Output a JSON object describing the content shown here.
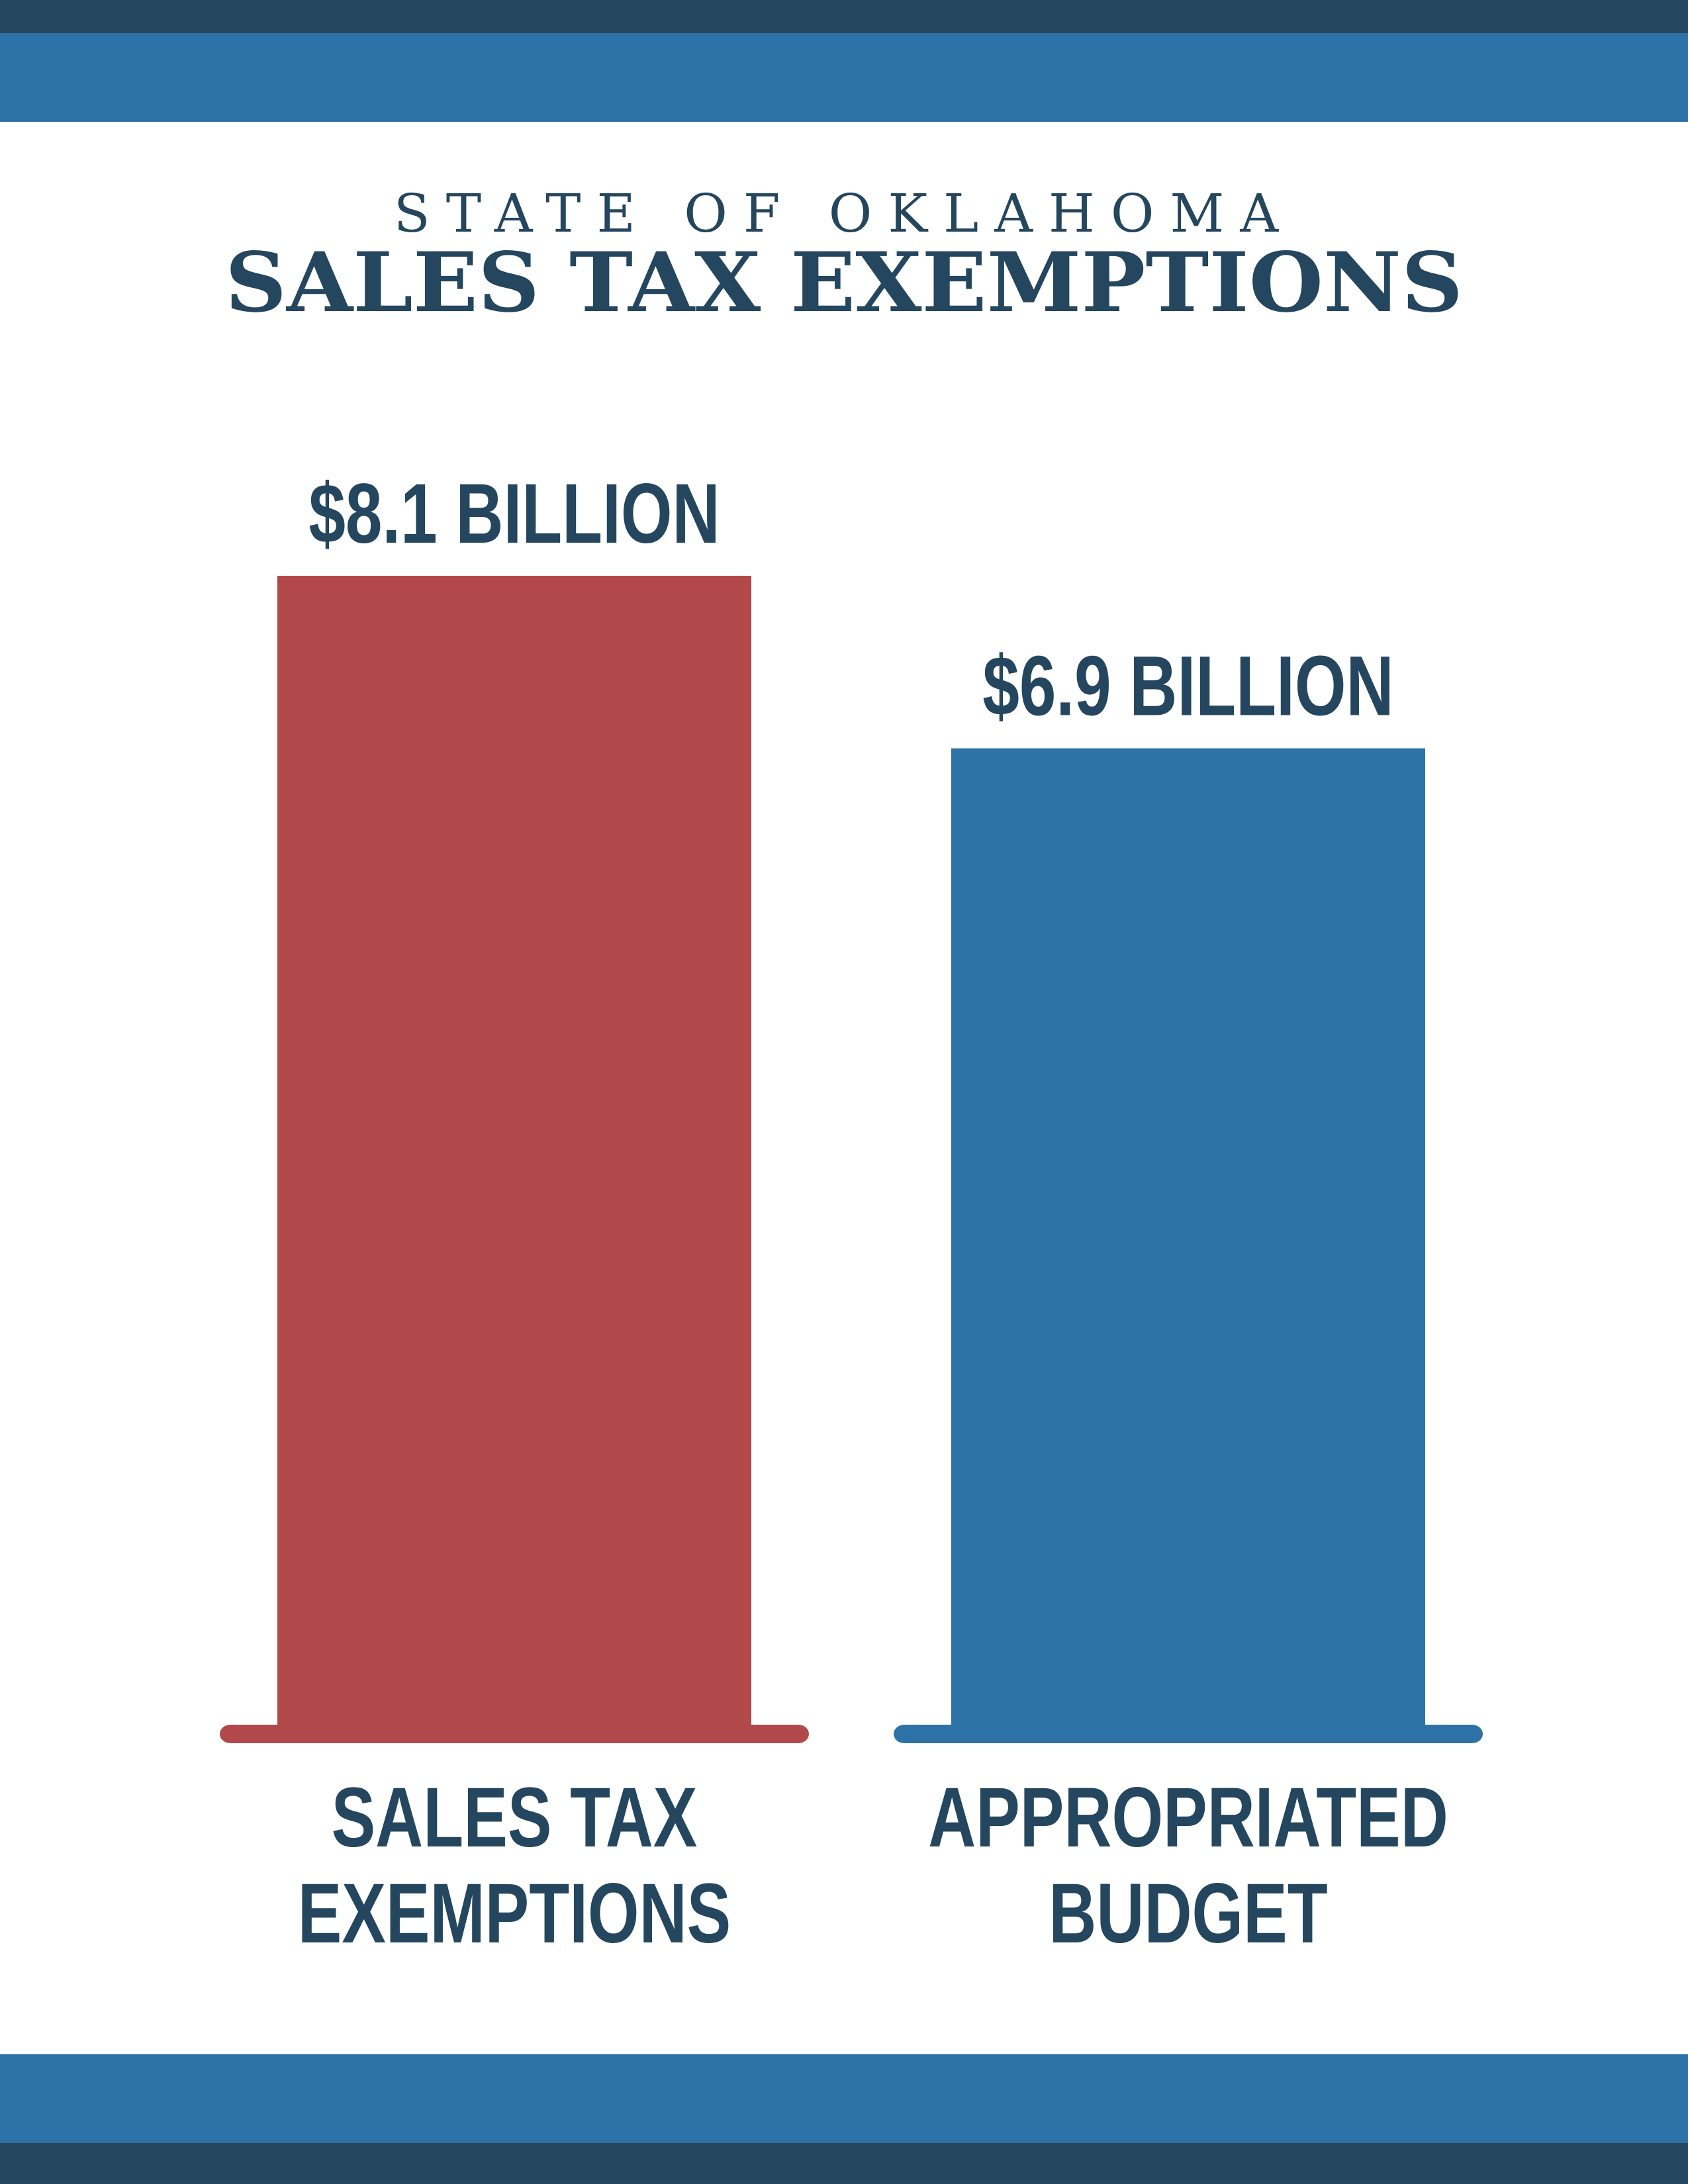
{
  "header": {
    "kicker": "STATE OF OKLAHOMA",
    "title": "SALES TAX EXEMPTIONS"
  },
  "colors": {
    "navy": "#24465e",
    "blue": "#2d72a6",
    "red": "#b14849",
    "text": "#24465e"
  },
  "chart_data": {
    "type": "bar",
    "title": "SALES TAX EXEMPTIONS",
    "xlabel": "",
    "ylabel": "",
    "unit": "billion USD",
    "grid": false,
    "legend": "none",
    "ylim": [
      0,
      8.1
    ],
    "categories": [
      {
        "label_lines": [
          "SALES TAX",
          "EXEMPTIONS"
        ],
        "value": 8.1,
        "value_label": "$8.1 BILLION",
        "color": "#b14849"
      },
      {
        "label_lines": [
          "APPROPRIATED",
          "BUDGET"
        ],
        "value": 6.9,
        "value_label": "$6.9 BILLION",
        "color": "#2d72a6"
      }
    ]
  }
}
